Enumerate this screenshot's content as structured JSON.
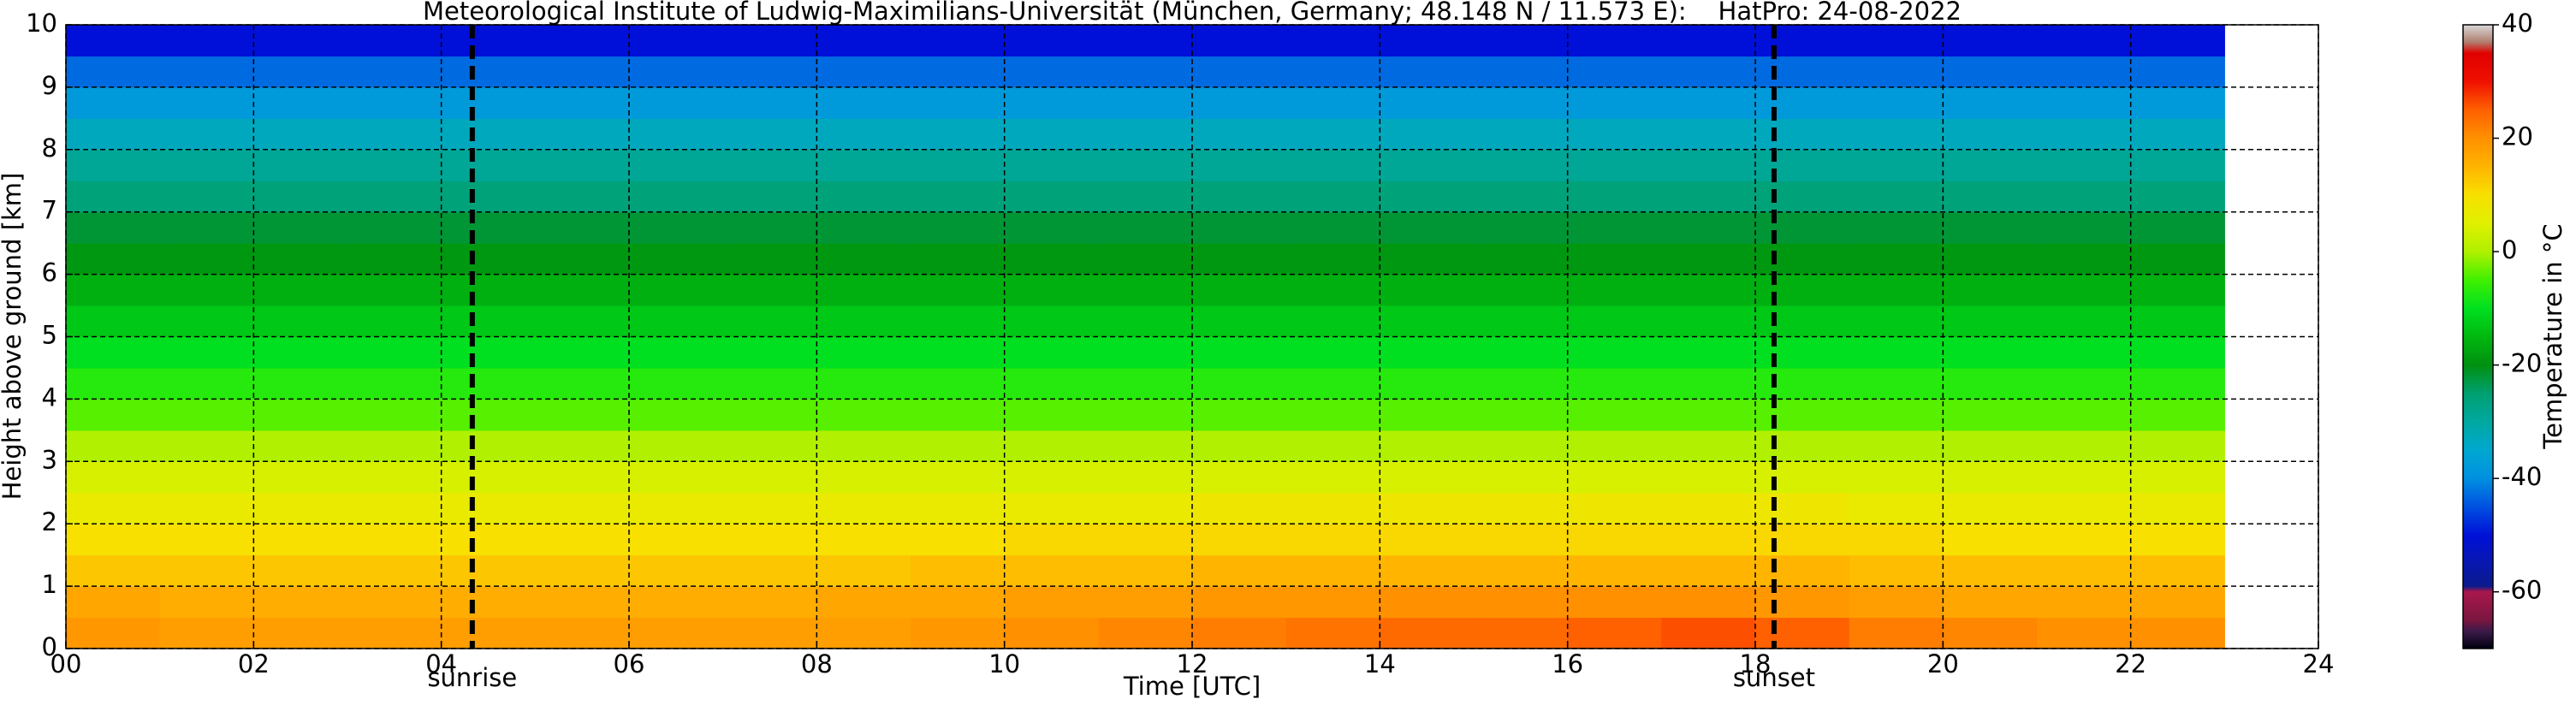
{
  "chart_data": {
    "type": "heatmap",
    "title": "Meteorological Institute of Ludwig-Maximilians-Universität (München, Germany; 48.148 N / 11.573 E):    HatPro: 24-08-2022",
    "xlabel": "Time [UTC]",
    "ylabel": "Height above ground [km]",
    "colorbar_label": "Temperature in °C",
    "xlim": [
      0,
      24
    ],
    "xticks": [
      {
        "value": 0,
        "label": "00"
      },
      {
        "value": 2,
        "label": "02"
      },
      {
        "value": 4,
        "label": "04"
      },
      {
        "value": 6,
        "label": "06"
      },
      {
        "value": 8,
        "label": "08"
      },
      10,
      12,
      14,
      16,
      18,
      20,
      22,
      24
    ],
    "ylim": [
      0,
      10
    ],
    "yticks": [
      0,
      1,
      2,
      3,
      4,
      5,
      6,
      7,
      8,
      9,
      10
    ],
    "clim": [
      -70,
      40
    ],
    "cticks": [
      -60,
      -40,
      -20,
      0,
      20,
      40
    ],
    "grid": true,
    "annotations": [
      {
        "text": "sunrise",
        "x": 4.33
      },
      {
        "text": "sunset",
        "x": 18.2
      }
    ],
    "colorscale": [
      [
        -70,
        "#000010"
      ],
      [
        -67,
        "#3a1a48"
      ],
      [
        -65,
        "#7a1640"
      ],
      [
        -60,
        "#a8184c"
      ],
      [
        -59,
        "#0a1a8c"
      ],
      [
        -55,
        "#0818b0"
      ],
      [
        -50,
        "#0010d8"
      ],
      [
        -45,
        "#0050e0"
      ],
      [
        -40,
        "#0090e0"
      ],
      [
        -35,
        "#00a8d0"
      ],
      [
        -30,
        "#00a8a0"
      ],
      [
        -25,
        "#00a070"
      ],
      [
        -20,
        "#009010"
      ],
      [
        -15,
        "#00b810"
      ],
      [
        -10,
        "#00e020"
      ],
      [
        -5,
        "#40f000"
      ],
      [
        0,
        "#b0f000"
      ],
      [
        5,
        "#e0f000"
      ],
      [
        10,
        "#f8e000"
      ],
      [
        15,
        "#ffb400"
      ],
      [
        20,
        "#ff9000"
      ],
      [
        25,
        "#ff6000"
      ],
      [
        30,
        "#f01000"
      ],
      [
        35,
        "#e00000"
      ],
      [
        37,
        "#b08070"
      ],
      [
        40,
        "#d8d8d8"
      ]
    ],
    "x_edges": [
      0,
      1,
      2,
      3,
      4,
      5,
      6,
      7,
      8,
      9,
      10,
      11,
      12,
      13,
      14,
      15,
      16,
      17,
      18,
      19,
      20,
      21,
      22,
      23
    ],
    "y_edges": [
      0,
      0.5,
      1,
      1.5,
      2,
      2.5,
      3,
      3.5,
      4,
      4.5,
      5,
      5.5,
      6,
      6.5,
      7,
      7.5,
      8,
      8.5,
      9,
      9.5,
      10
    ],
    "z": [
      [
        19,
        18,
        18,
        18,
        18,
        18,
        18,
        18,
        18,
        19,
        20,
        21,
        22,
        23,
        24,
        24,
        25,
        26,
        25,
        22,
        21,
        20,
        20
      ],
      [
        17,
        16,
        16,
        16,
        16,
        16,
        16,
        16,
        17,
        17,
        18,
        18,
        19,
        19,
        20,
        20,
        20,
        20,
        19,
        18,
        17,
        17,
        17
      ],
      [
        13,
        13,
        13,
        13,
        13,
        13,
        13,
        13,
        13,
        14,
        14,
        14,
        15,
        15,
        15,
        15,
        15,
        15,
        15,
        14,
        14,
        14,
        14
      ],
      [
        10,
        10,
        10,
        10,
        10,
        10,
        10,
        10,
        10,
        10,
        11,
        11,
        11,
        11,
        11,
        11,
        11,
        11,
        11,
        11,
        10,
        10,
        10
      ],
      [
        7,
        7,
        7,
        7,
        7,
        7,
        7,
        7,
        7,
        7,
        7,
        7,
        8,
        8,
        8,
        8,
        8,
        8,
        8,
        7,
        7,
        7,
        7
      ],
      [
        4,
        4,
        4,
        4,
        4,
        4,
        4,
        4,
        4,
        4,
        4,
        4,
        4,
        4,
        4,
        4,
        4,
        4,
        4,
        4,
        4,
        4,
        4
      ],
      [
        0,
        0,
        0,
        0,
        0,
        0,
        0,
        0,
        0,
        0,
        0,
        0,
        0,
        0,
        0,
        0,
        0,
        0,
        0,
        0,
        0,
        0,
        0
      ],
      [
        -4,
        -4,
        -4,
        -4,
        -4,
        -4,
        -4,
        -4,
        -4,
        -4,
        -4,
        -4,
        -4,
        -4,
        -4,
        -4,
        -4,
        -4,
        -4,
        -4,
        -4,
        -4,
        -4
      ],
      [
        -7,
        -7,
        -7,
        -7,
        -7,
        -7,
        -7,
        -7,
        -7,
        -7,
        -7,
        -7,
        -7,
        -7,
        -7,
        -7,
        -7,
        -7,
        -7,
        -7,
        -7,
        -7,
        -7
      ],
      [
        -10,
        -10,
        -10,
        -10,
        -10,
        -10,
        -10,
        -10,
        -10,
        -10,
        -10,
        -10,
        -10,
        -10,
        -10,
        -10,
        -10,
        -10,
        -10,
        -10,
        -10,
        -10,
        -10
      ],
      [
        -13,
        -13,
        -13,
        -13,
        -13,
        -13,
        -13,
        -13,
        -13,
        -13,
        -13,
        -13,
        -13,
        -13,
        -13,
        -13,
        -13,
        -13,
        -13,
        -13,
        -13,
        -13,
        -13
      ],
      [
        -16,
        -16,
        -16,
        -16,
        -16,
        -16,
        -16,
        -16,
        -16,
        -16,
        -16,
        -16,
        -16,
        -16,
        -16,
        -16,
        -16,
        -16,
        -16,
        -16,
        -16,
        -16,
        -16
      ],
      [
        -19,
        -19,
        -19,
        -19,
        -19,
        -19,
        -19,
        -19,
        -19,
        -19,
        -19,
        -19,
        -19,
        -19,
        -19,
        -19,
        -19,
        -19,
        -19,
        -19,
        -19,
        -19,
        -19
      ],
      [
        -22,
        -22,
        -22,
        -22,
        -22,
        -22,
        -22,
        -22,
        -22,
        -22,
        -22,
        -22,
        -22,
        -22,
        -22,
        -22,
        -22,
        -22,
        -22,
        -22,
        -22,
        -22,
        -22
      ],
      [
        -26,
        -26,
        -26,
        -26,
        -26,
        -26,
        -26,
        -26,
        -26,
        -26,
        -26,
        -26,
        -26,
        -26,
        -26,
        -26,
        -26,
        -26,
        -26,
        -26,
        -26,
        -26,
        -26
      ],
      [
        -29,
        -29,
        -29,
        -29,
        -29,
        -29,
        -29,
        -29,
        -29,
        -29,
        -29,
        -29,
        -29,
        -29,
        -29,
        -29,
        -29,
        -29,
        -29,
        -29,
        -29,
        -29,
        -29
      ],
      [
        -33,
        -33,
        -33,
        -33,
        -33,
        -33,
        -33,
        -33,
        -33,
        -33,
        -33,
        -33,
        -33,
        -33,
        -33,
        -33,
        -33,
        -33,
        -33,
        -33,
        -33,
        -33,
        -33
      ],
      [
        -38,
        -38,
        -38,
        -38,
        -38,
        -38,
        -38,
        -38,
        -38,
        -38,
        -38,
        -38,
        -38,
        -38,
        -38,
        -38,
        -38,
        -38,
        -38,
        -38,
        -38,
        -38,
        -38
      ],
      [
        -43,
        -43,
        -43,
        -43,
        -43,
        -43,
        -43,
        -43,
        -43,
        -43,
        -43,
        -43,
        -43,
        -43,
        -43,
        -43,
        -43,
        -43,
        -43,
        -43,
        -43,
        -43,
        -43
      ],
      [
        -50,
        -50,
        -50,
        -50,
        -50,
        -50,
        -50,
        -50,
        -50,
        -50,
        -50,
        -50,
        -50,
        -50,
        -50,
        -50,
        -50,
        -50,
        -50,
        -50,
        -50,
        -50,
        -50
      ]
    ]
  }
}
